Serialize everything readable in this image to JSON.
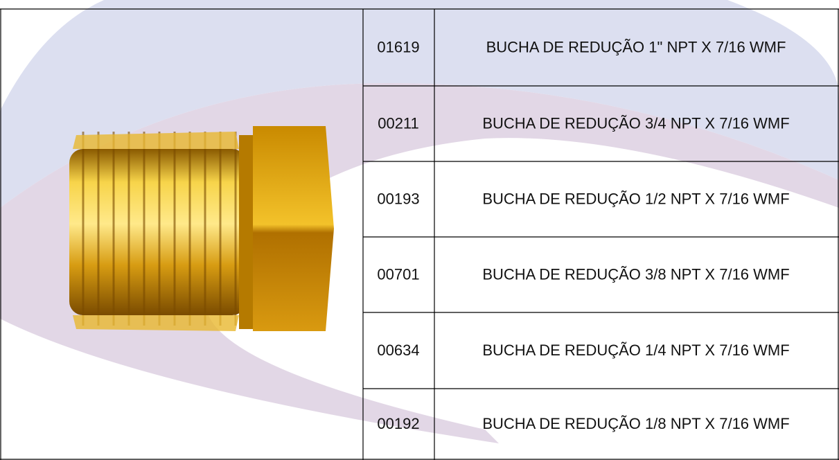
{
  "table": {
    "rows": [
      [
        "01619",
        "BUCHA DE REDUÇÃO 1\" NPT X 7/16 WMF"
      ],
      [
        "00211",
        "BUCHA DE REDUÇÃO 3/4 NPT X 7/16 WMF"
      ],
      [
        "00193",
        "BUCHA DE REDUÇÃO 1/2 NPT X 7/16 WMF"
      ],
      [
        "00701",
        "BUCHA DE REDUÇÃO 3/8 NPT X 7/16 WMF"
      ],
      [
        "00634",
        "BUCHA DE REDUÇÃO 1/4 NPT X 7/16 WMF"
      ],
      [
        "00192",
        "BUCHA DE REDUÇÃO 1/8 NPT X 7/16 WMF"
      ]
    ]
  }
}
